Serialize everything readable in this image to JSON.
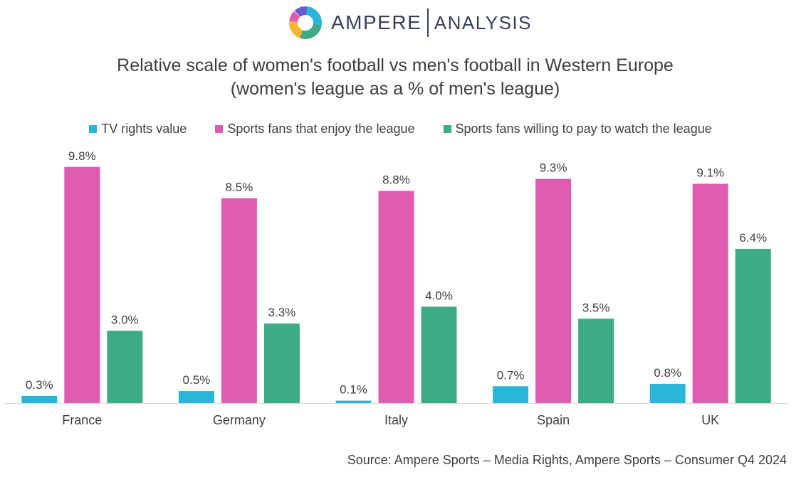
{
  "brand": {
    "name": "AMPERE",
    "suffix": "ANALYSIS"
  },
  "title_line1": "Relative scale of women's football vs men's football in Western Europe",
  "title_line2": "(women's league as a % of men's league)",
  "source": "Source: Ampere Sports – Media Rights, Ampere Sports – Consumer Q4 2024",
  "colors": {
    "tv": "#29b6d9",
    "enjoy": "#e05cb1",
    "pay": "#3fab84",
    "axis": "#d9d9d9"
  },
  "chart_data": {
    "type": "bar",
    "categories": [
      "France",
      "Germany",
      "Italy",
      "Spain",
      "UK"
    ],
    "series": [
      {
        "name": "TV rights value",
        "values": [
          0.3,
          0.5,
          0.1,
          0.7,
          0.8
        ],
        "labels": [
          "0.3%",
          "0.5%",
          "0.1%",
          "0.7%",
          "0.8%"
        ]
      },
      {
        "name": "Sports fans that enjoy the league",
        "values": [
          9.8,
          8.5,
          8.8,
          9.3,
          9.1
        ],
        "labels": [
          "9.8%",
          "8.5%",
          "8.8%",
          "9.3%",
          "9.1%"
        ]
      },
      {
        "name": "Sports fans willing to pay to watch the league",
        "values": [
          3.0,
          3.3,
          4.0,
          3.5,
          6.4
        ],
        "labels": [
          "3.0%",
          "3.3%",
          "4.0%",
          "3.5%",
          "6.4%"
        ]
      }
    ],
    "ylim": [
      0,
      10
    ],
    "grid": false,
    "legend": "top-center"
  }
}
